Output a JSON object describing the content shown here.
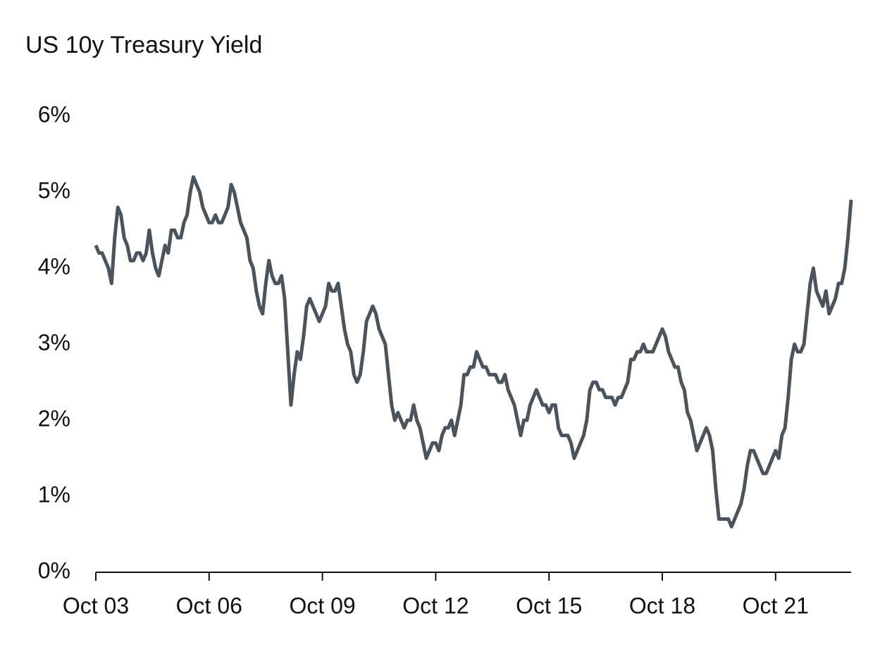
{
  "chart_data": {
    "type": "line",
    "title": "US 10y Treasury Yield",
    "x": [
      "2003-10",
      "2003-11",
      "2003-12",
      "2004-01",
      "2004-02",
      "2004-03",
      "2004-04",
      "2004-05",
      "2004-06",
      "2004-07",
      "2004-08",
      "2004-09",
      "2004-10",
      "2004-11",
      "2004-12",
      "2005-01",
      "2005-02",
      "2005-03",
      "2005-04",
      "2005-05",
      "2005-06",
      "2005-07",
      "2005-08",
      "2005-09",
      "2005-10",
      "2005-11",
      "2005-12",
      "2006-01",
      "2006-02",
      "2006-03",
      "2006-04",
      "2006-05",
      "2006-06",
      "2006-07",
      "2006-08",
      "2006-09",
      "2006-10",
      "2006-11",
      "2006-12",
      "2007-01",
      "2007-02",
      "2007-03",
      "2007-04",
      "2007-05",
      "2007-06",
      "2007-07",
      "2007-08",
      "2007-09",
      "2007-10",
      "2007-11",
      "2007-12",
      "2008-01",
      "2008-02",
      "2008-03",
      "2008-04",
      "2008-05",
      "2008-06",
      "2008-07",
      "2008-08",
      "2008-09",
      "2008-10",
      "2008-11",
      "2008-12",
      "2009-01",
      "2009-02",
      "2009-03",
      "2009-04",
      "2009-05",
      "2009-06",
      "2009-07",
      "2009-08",
      "2009-09",
      "2009-10",
      "2009-11",
      "2009-12",
      "2010-01",
      "2010-02",
      "2010-03",
      "2010-04",
      "2010-05",
      "2010-06",
      "2010-07",
      "2010-08",
      "2010-09",
      "2010-10",
      "2010-11",
      "2010-12",
      "2011-01",
      "2011-02",
      "2011-03",
      "2011-04",
      "2011-05",
      "2011-06",
      "2011-07",
      "2011-08",
      "2011-09",
      "2011-10",
      "2011-11",
      "2011-12",
      "2012-01",
      "2012-02",
      "2012-03",
      "2012-04",
      "2012-05",
      "2012-06",
      "2012-07",
      "2012-08",
      "2012-09",
      "2012-10",
      "2012-11",
      "2012-12",
      "2013-01",
      "2013-02",
      "2013-03",
      "2013-04",
      "2013-05",
      "2013-06",
      "2013-07",
      "2013-08",
      "2013-09",
      "2013-10",
      "2013-11",
      "2013-12",
      "2014-01",
      "2014-02",
      "2014-03",
      "2014-04",
      "2014-05",
      "2014-06",
      "2014-07",
      "2014-08",
      "2014-09",
      "2014-10",
      "2014-11",
      "2014-12",
      "2015-01",
      "2015-02",
      "2015-03",
      "2015-04",
      "2015-05",
      "2015-06",
      "2015-07",
      "2015-08",
      "2015-09",
      "2015-10",
      "2015-11",
      "2015-12",
      "2016-01",
      "2016-02",
      "2016-03",
      "2016-04",
      "2016-05",
      "2016-06",
      "2016-07",
      "2016-08",
      "2016-09",
      "2016-10",
      "2016-11",
      "2016-12",
      "2017-01",
      "2017-02",
      "2017-03",
      "2017-04",
      "2017-05",
      "2017-06",
      "2017-07",
      "2017-08",
      "2017-09",
      "2017-10",
      "2017-11",
      "2017-12",
      "2018-01",
      "2018-02",
      "2018-03",
      "2018-04",
      "2018-05",
      "2018-06",
      "2018-07",
      "2018-08",
      "2018-09",
      "2018-10",
      "2018-11",
      "2018-12",
      "2019-01",
      "2019-02",
      "2019-03",
      "2019-04",
      "2019-05",
      "2019-06",
      "2019-07",
      "2019-08",
      "2019-09",
      "2019-10",
      "2019-11",
      "2019-12",
      "2020-01",
      "2020-02",
      "2020-03",
      "2020-04",
      "2020-05",
      "2020-06",
      "2020-07",
      "2020-08",
      "2020-09",
      "2020-10",
      "2020-11",
      "2020-12",
      "2021-01",
      "2021-02",
      "2021-03",
      "2021-04",
      "2021-05",
      "2021-06",
      "2021-07",
      "2021-08",
      "2021-09",
      "2021-10",
      "2021-11",
      "2021-12",
      "2022-01",
      "2022-02",
      "2022-03",
      "2022-04",
      "2022-05",
      "2022-06",
      "2022-07",
      "2022-08",
      "2022-09",
      "2022-10",
      "2022-11",
      "2022-12",
      "2023-01",
      "2023-02",
      "2023-03",
      "2023-04",
      "2023-05",
      "2023-06",
      "2023-07",
      "2023-08",
      "2023-09",
      "2023-10"
    ],
    "series": [
      {
        "color": "#4a545c",
        "values": [
          4.3,
          4.2,
          4.2,
          4.1,
          4.0,
          3.8,
          4.4,
          4.8,
          4.7,
          4.4,
          4.3,
          4.1,
          4.1,
          4.2,
          4.2,
          4.1,
          4.2,
          4.5,
          4.2,
          4.0,
          3.9,
          4.1,
          4.3,
          4.2,
          4.5,
          4.5,
          4.4,
          4.4,
          4.6,
          4.7,
          5.0,
          5.2,
          5.1,
          5.0,
          4.8,
          4.7,
          4.6,
          4.6,
          4.7,
          4.6,
          4.6,
          4.7,
          4.8,
          5.1,
          5.0,
          4.8,
          4.6,
          4.5,
          4.4,
          4.1,
          4.0,
          3.7,
          3.5,
          3.4,
          3.8,
          4.1,
          3.9,
          3.8,
          3.8,
          3.9,
          3.6,
          2.9,
          2.2,
          2.6,
          2.9,
          2.8,
          3.1,
          3.5,
          3.6,
          3.5,
          3.4,
          3.3,
          3.4,
          3.5,
          3.8,
          3.7,
          3.7,
          3.8,
          3.5,
          3.2,
          3.0,
          2.9,
          2.6,
          2.5,
          2.6,
          2.9,
          3.3,
          3.4,
          3.5,
          3.4,
          3.2,
          3.1,
          3.0,
          2.6,
          2.2,
          2.0,
          2.1,
          2.0,
          1.9,
          2.0,
          2.0,
          2.2,
          2.0,
          1.9,
          1.7,
          1.5,
          1.6,
          1.7,
          1.7,
          1.6,
          1.8,
          1.9,
          1.9,
          2.0,
          1.8,
          2.0,
          2.2,
          2.6,
          2.6,
          2.7,
          2.7,
          2.9,
          2.8,
          2.7,
          2.7,
          2.6,
          2.6,
          2.6,
          2.5,
          2.5,
          2.6,
          2.4,
          2.3,
          2.2,
          2.0,
          1.8,
          2.0,
          2.0,
          2.2,
          2.3,
          2.4,
          2.3,
          2.2,
          2.2,
          2.1,
          2.2,
          2.2,
          1.9,
          1.8,
          1.8,
          1.8,
          1.7,
          1.5,
          1.6,
          1.7,
          1.8,
          2.0,
          2.4,
          2.5,
          2.5,
          2.4,
          2.4,
          2.3,
          2.3,
          2.3,
          2.2,
          2.3,
          2.3,
          2.4,
          2.5,
          2.8,
          2.8,
          2.9,
          2.9,
          3.0,
          2.9,
          2.9,
          2.9,
          3.0,
          3.1,
          3.2,
          3.1,
          2.9,
          2.8,
          2.7,
          2.7,
          2.5,
          2.4,
          2.1,
          2.0,
          1.8,
          1.6,
          1.7,
          1.8,
          1.9,
          1.8,
          1.6,
          1.1,
          0.7,
          0.7,
          0.7,
          0.7,
          0.6,
          0.7,
          0.8,
          0.9,
          1.1,
          1.4,
          1.6,
          1.6,
          1.5,
          1.4,
          1.3,
          1.3,
          1.4,
          1.5,
          1.6,
          1.5,
          1.8,
          1.9,
          2.3,
          2.8,
          3.0,
          2.9,
          2.9,
          3.0,
          3.4,
          3.8,
          4.0,
          3.7,
          3.6,
          3.5,
          3.7,
          3.4,
          3.5,
          3.6,
          3.8,
          3.8,
          4.0,
          4.4,
          4.9
        ]
      }
    ],
    "xlim": [
      "2003-10",
      "2023-10"
    ],
    "xticks": [
      {
        "value": "2003-10",
        "label": "Oct 03"
      },
      {
        "value": "2006-10",
        "label": "Oct 06"
      },
      {
        "value": "2009-10",
        "label": "Oct 09"
      },
      {
        "value": "2012-10",
        "label": "Oct 12"
      },
      {
        "value": "2015-10",
        "label": "Oct 15"
      },
      {
        "value": "2018-10",
        "label": "Oct 18"
      },
      {
        "value": "2021-10",
        "label": "Oct 21"
      }
    ],
    "ylim": [
      0,
      6
    ],
    "yticks": [
      {
        "value": 0,
        "label": "0%"
      },
      {
        "value": 1,
        "label": "1%"
      },
      {
        "value": 2,
        "label": "2%"
      },
      {
        "value": 3,
        "label": "3%"
      },
      {
        "value": 4,
        "label": "4%"
      },
      {
        "value": 5,
        "label": "5%"
      },
      {
        "value": 6,
        "label": "6%"
      }
    ],
    "grid": false
  }
}
